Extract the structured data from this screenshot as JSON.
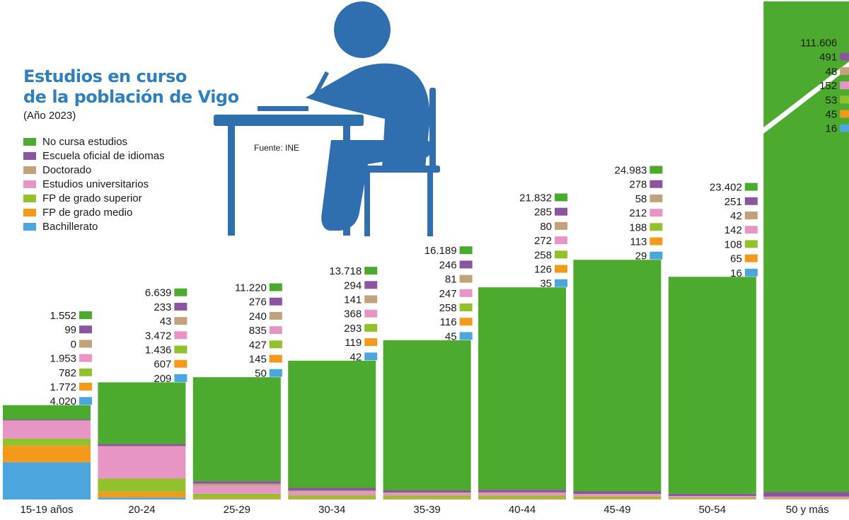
{
  "header": {
    "title_line1": "Estudios en curso",
    "title_line2": "de la población de Vigo",
    "subtitle": "(Año 2023)",
    "source": "Fuente: INE"
  },
  "colors": {
    "no_cursa": "#4caa2f",
    "idiomas": "#8c55a0",
    "doctorado": "#c2a27a",
    "universitarios": "#e795c5",
    "fp_superior": "#93c02d",
    "fp_medio": "#f39a1c",
    "bachillerato": "#4aa6dd",
    "title": "#2f7fc1",
    "figure": "#2f6fb0"
  },
  "icon": {
    "name": "student-at-desk-icon"
  },
  "chart_data": {
    "type": "bar",
    "stacked": true,
    "title": "Estudios en curso de la población de Vigo",
    "subtitle": "(Año 2023)",
    "source": "Fuente: INE",
    "legend_position": "left",
    "categories": [
      "15-19 años",
      "20-24",
      "25-29",
      "30-34",
      "35-39",
      "40-44",
      "45-49",
      "50-54",
      "50 y más"
    ],
    "axis_break_on": "50 y más",
    "series": [
      {
        "key": "no_cursa",
        "name": "No cursa estudios",
        "values": [
          1552,
          6639,
          11220,
          13718,
          16189,
          21832,
          24983,
          23402,
          111606
        ],
        "labels": [
          "1.552",
          "6.639",
          "11.220",
          "13.718",
          "16.189",
          "21.832",
          "24.983",
          "23.402",
          "111.606"
        ]
      },
      {
        "key": "idiomas",
        "name": "Escuela oficial de idiomas",
        "values": [
          99,
          233,
          276,
          294,
          246,
          285,
          278,
          251,
          491
        ],
        "labels": [
          "99",
          "233",
          "276",
          "294",
          "246",
          "285",
          "278",
          "251",
          "491"
        ]
      },
      {
        "key": "doctorado",
        "name": "Doctorado",
        "values": [
          0,
          43,
          240,
          141,
          81,
          80,
          58,
          42,
          48
        ],
        "labels": [
          "0",
          "43",
          "240",
          "141",
          "81",
          "80",
          "58",
          "42",
          "48"
        ]
      },
      {
        "key": "universitarios",
        "name": "Estudios universitarios",
        "values": [
          1953,
          3472,
          835,
          368,
          247,
          272,
          212,
          142,
          152
        ],
        "labels": [
          "1.953",
          "3.472",
          "835",
          "368",
          "247",
          "272",
          "212",
          "142",
          "152"
        ]
      },
      {
        "key": "fp_superior",
        "name": "FP de grado superior",
        "values": [
          782,
          1436,
          427,
          293,
          258,
          258,
          188,
          108,
          53
        ],
        "labels": [
          "782",
          "1.436",
          "427",
          "293",
          "258",
          "258",
          "188",
          "108",
          "53"
        ]
      },
      {
        "key": "fp_medio",
        "name": "FP de grado medio",
        "values": [
          1772,
          607,
          145,
          119,
          116,
          126,
          113,
          65,
          45
        ],
        "labels": [
          "1.772",
          "607",
          "145",
          "119",
          "116",
          "126",
          "113",
          "65",
          "45"
        ]
      },
      {
        "key": "bachillerato",
        "name": "Bachillerato",
        "values": [
          4020,
          209,
          50,
          42,
          45,
          35,
          29,
          16,
          16
        ],
        "labels": [
          "4.020",
          "209",
          "50",
          "42",
          "45",
          "35",
          "29",
          "16",
          "16"
        ]
      }
    ]
  }
}
